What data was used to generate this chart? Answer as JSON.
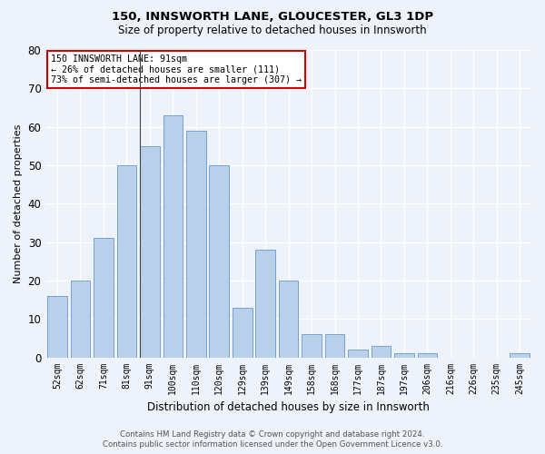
{
  "title": "150, INNSWORTH LANE, GLOUCESTER, GL3 1DP",
  "subtitle": "Size of property relative to detached houses in Innsworth",
  "xlabel": "Distribution of detached houses by size in Innsworth",
  "ylabel": "Number of detached properties",
  "categories": [
    "52sqm",
    "62sqm",
    "71sqm",
    "81sqm",
    "91sqm",
    "100sqm",
    "110sqm",
    "120sqm",
    "129sqm",
    "139sqm",
    "149sqm",
    "158sqm",
    "168sqm",
    "177sqm",
    "187sqm",
    "197sqm",
    "206sqm",
    "216sqm",
    "226sqm",
    "235sqm",
    "245sqm"
  ],
  "values": [
    16,
    20,
    31,
    50,
    55,
    63,
    59,
    50,
    13,
    28,
    20,
    6,
    6,
    2,
    3,
    1,
    1,
    0,
    0,
    0,
    1
  ],
  "bar_color": "#b8d0ea",
  "bar_edge_color": "#6699cc",
  "highlight_line_idx": 4,
  "annotation_title": "150 INNSWORTH LANE: 91sqm",
  "annotation_line1": "← 26% of detached houses are smaller (111)",
  "annotation_line2": "73% of semi-detached houses are larger (307) →",
  "annotation_box_facecolor": "#ffffff",
  "annotation_box_edgecolor": "#cc0000",
  "background_color": "#eef2fb",
  "grid_color": "#ffffff",
  "ylim": [
    0,
    80
  ],
  "yticks": [
    0,
    10,
    20,
    30,
    40,
    50,
    60,
    70,
    80
  ],
  "footer_line1": "Contains HM Land Registry data © Crown copyright and database right 2024.",
  "footer_line2": "Contains public sector information licensed under the Open Government Licence v3.0."
}
